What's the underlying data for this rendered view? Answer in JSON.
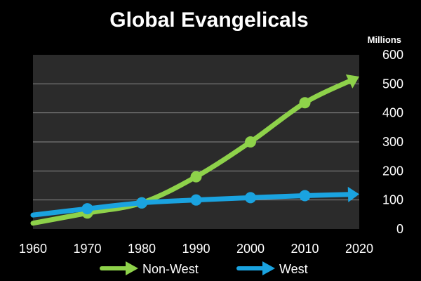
{
  "chart_data": {
    "type": "line",
    "title": "Global Evangelicals",
    "xlabel": "",
    "ylabel": "Millions",
    "x": [
      1960,
      1970,
      1980,
      1990,
      2000,
      2010,
      2020
    ],
    "x_tick_labels": [
      "1960",
      "1970",
      "1980",
      "1990",
      "2000",
      "2010",
      "2020"
    ],
    "y_tick_labels": [
      "0",
      "100",
      "200",
      "300",
      "400",
      "500",
      "600"
    ],
    "xlim": [
      1960,
      2020
    ],
    "ylim": [
      0,
      600
    ],
    "grid": true,
    "legend_position": "bottom",
    "series": [
      {
        "name": "Non-West",
        "color": "#8ed24a",
        "x": [
          1960,
          1970,
          1980,
          1990,
          2000,
          2010,
          2020
        ],
        "values": [
          20,
          55,
          90,
          180,
          300,
          435,
          525
        ],
        "markers": [
          1970,
          1980,
          1990,
          2000,
          2010
        ]
      },
      {
        "name": "West",
        "color": "#1aa3e0",
        "x": [
          1960,
          1970,
          1980,
          1990,
          2000,
          2010,
          2020
        ],
        "values": [
          48,
          70,
          90,
          100,
          108,
          115,
          120
        ],
        "markers": [
          1970,
          1980,
          1990,
          2000,
          2010
        ]
      }
    ],
    "colors": {
      "background": "#000000",
      "plot_area": "#2b2b2b",
      "grid": "#8a8a8a",
      "text": "#ffffff"
    }
  }
}
